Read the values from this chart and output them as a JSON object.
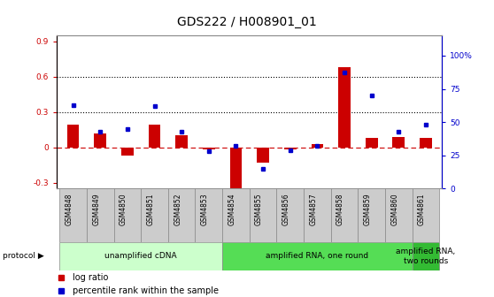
{
  "title": "GDS222 / H008901_01",
  "samples": [
    "GSM4848",
    "GSM4849",
    "GSM4850",
    "GSM4851",
    "GSM4852",
    "GSM4853",
    "GSM4854",
    "GSM4855",
    "GSM4856",
    "GSM4857",
    "GSM4858",
    "GSM4859",
    "GSM4860",
    "GSM4861"
  ],
  "log_ratio": [
    0.19,
    0.12,
    -0.07,
    0.19,
    0.1,
    -0.02,
    -0.37,
    -0.13,
    -0.02,
    0.03,
    0.68,
    0.08,
    0.09,
    0.08
  ],
  "percentile": [
    0.63,
    0.43,
    0.45,
    0.62,
    0.43,
    0.28,
    0.32,
    0.15,
    0.29,
    0.32,
    0.87,
    0.7,
    0.43,
    0.48
  ],
  "bar_color": "#cc0000",
  "dot_color": "#0000cc",
  "ylim_left": [
    -0.35,
    0.95
  ],
  "ylim_right": [
    0.0,
    1.15
  ],
  "yticks_left": [
    -0.3,
    0.0,
    0.3,
    0.6,
    0.9
  ],
  "yticks_right": [
    0.0,
    0.25,
    0.5,
    0.75,
    1.0
  ],
  "ytick_labels_left": [
    "-0.3",
    "0",
    "0.3",
    "0.6",
    "0.9"
  ],
  "ytick_labels_right": [
    "0",
    "25",
    "50",
    "75",
    "100%"
  ],
  "hlines": [
    0.3,
    0.6
  ],
  "protocol_groups": [
    {
      "label": "unamplified cDNA",
      "start": 0,
      "end": 5,
      "color": "#ccffcc"
    },
    {
      "label": "amplified RNA, one round",
      "start": 6,
      "end": 12,
      "color": "#55dd55"
    },
    {
      "label": "amplified RNA,\ntwo rounds",
      "start": 13,
      "end": 13,
      "color": "#33bb33"
    }
  ],
  "legend_items": [
    {
      "label": "log ratio",
      "color": "#cc0000"
    },
    {
      "label": "percentile rank within the sample",
      "color": "#0000cc"
    }
  ],
  "zero_line_color": "#cc0000",
  "bg_color": "#ffffff",
  "title_fontsize": 10,
  "tick_fontsize": 6.5,
  "sample_fontsize": 5.5,
  "legend_fontsize": 7,
  "proto_fontsize": 6.5
}
